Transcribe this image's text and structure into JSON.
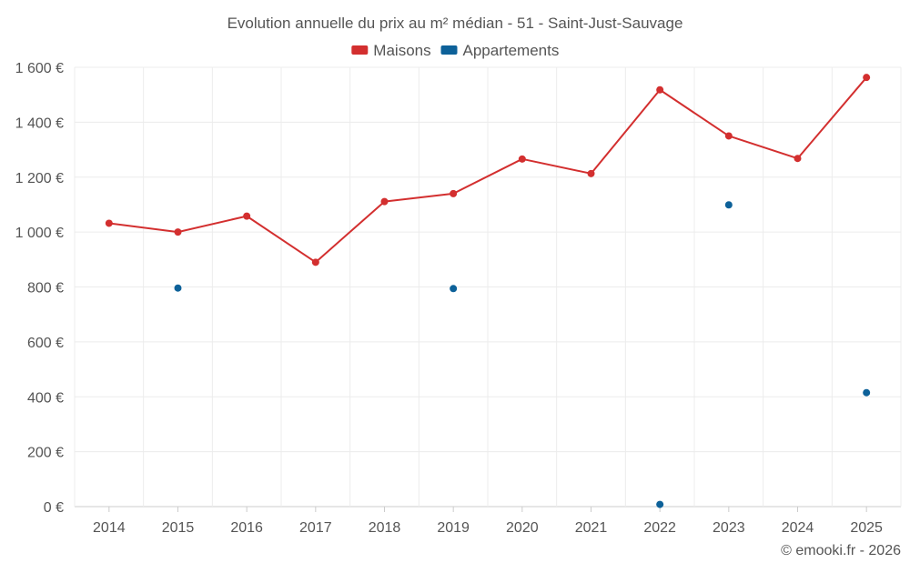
{
  "chart_data": {
    "type": "line",
    "title": "Evolution annuelle du prix au m² médian - 51 - Saint-Just-Sauvage",
    "xlabel": "",
    "ylabel": "",
    "categories": [
      "2014",
      "2015",
      "2016",
      "2017",
      "2018",
      "2019",
      "2020",
      "2021",
      "2022",
      "2023",
      "2024",
      "2025"
    ],
    "ylim": [
      0,
      1600
    ],
    "yticks": [
      0,
      200,
      400,
      600,
      800,
      1000,
      1200,
      1400,
      1600
    ],
    "ytick_labels": [
      "0 €",
      "200 €",
      "400 €",
      "600 €",
      "800 €",
      "1 000 €",
      "1 200 €",
      "1 400 €",
      "1 600 €"
    ],
    "grid": true,
    "legend_position": "top-center",
    "series": [
      {
        "name": "Maisons",
        "color": "#d32f2f",
        "line": true,
        "values": [
          1032,
          1000,
          1058,
          890,
          1111,
          1140,
          1266,
          1213,
          1518,
          1350,
          1268,
          1563
        ]
      },
      {
        "name": "Appartements",
        "color": "#0d6199",
        "line": false,
        "values": [
          null,
          796,
          null,
          null,
          null,
          794,
          null,
          null,
          8,
          1099,
          null,
          415
        ]
      }
    ]
  },
  "footer": {
    "credit": "© emooki.fr - 2026"
  }
}
